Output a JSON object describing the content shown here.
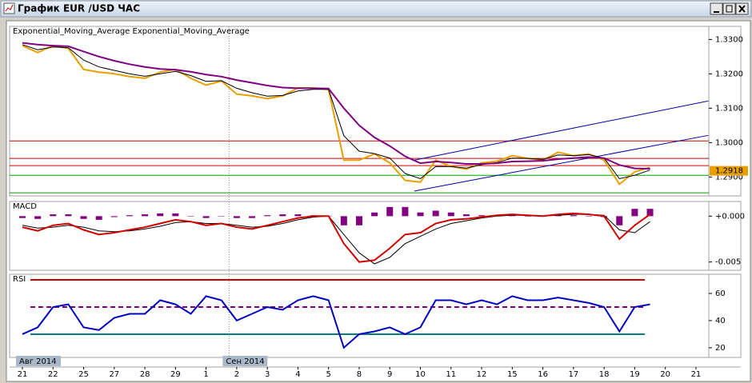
{
  "window": {
    "title": "График EUR /USD  ЧАС"
  },
  "time_axis": {
    "categories": [
      "21",
      "22",
      "25",
      "27",
      "28",
      "29",
      "1",
      "2",
      "3",
      "4",
      "5",
      "8",
      "9",
      "10",
      "11",
      "12",
      "15",
      "16",
      "17",
      "18",
      "19",
      "20",
      "21"
    ],
    "month_labels": [
      {
        "x": 0,
        "label": "Авг 2014"
      },
      {
        "x": 6.75,
        "label": "Сен 2014"
      }
    ]
  },
  "chart_data": [
    {
      "type": "line",
      "title": "Exponential_Moving_Average Exponential_Moving_Average",
      "ylim": [
        1.2845,
        1.3338
      ],
      "yticks": [
        {
          "value": 1.33,
          "label": "1.3300"
        },
        {
          "value": 1.32,
          "label": "1.3200"
        },
        {
          "value": 1.31,
          "label": "1.3100"
        },
        {
          "value": 1.3,
          "label": "1.3000"
        },
        {
          "value": 1.29,
          "label": "1.2900"
        }
      ],
      "x": [
        0,
        0.5,
        1,
        1.5,
        2,
        2.5,
        3,
        3.5,
        4,
        4.5,
        5,
        5.5,
        6,
        6.5,
        7,
        7.5,
        8,
        8.5,
        9,
        9.5,
        10,
        10.5,
        11,
        11.5,
        12,
        12.5,
        13,
        13.5,
        14,
        14.5,
        15,
        15.5,
        16,
        16.5,
        17,
        17.5,
        18,
        18.5,
        19,
        19.5,
        20,
        20.5
      ],
      "series": [
        {
          "color": "#e8a000",
          "values": [
            1.3282,
            1.3262,
            1.3282,
            1.3274,
            1.3213,
            1.3205,
            1.32,
            1.3192,
            1.3187,
            1.3205,
            1.3213,
            1.3187,
            1.3167,
            1.3179,
            1.3141,
            1.3136,
            1.3128,
            1.3136,
            1.3159,
            1.3159,
            1.3154,
            1.2949,
            1.2949,
            1.2967,
            1.2941,
            1.289,
            1.2885,
            1.2949,
            1.2931,
            1.2923,
            1.2941,
            1.2946,
            1.2962,
            1.2954,
            1.2949,
            1.2972,
            1.2962,
            1.2967,
            1.2949,
            1.2879,
            1.2915,
            1.2928
          ]
        },
        {
          "color": "#000000",
          "values": [
            1.3285,
            1.327,
            1.3278,
            1.3276,
            1.324,
            1.322,
            1.321,
            1.32,
            1.3193,
            1.32,
            1.3207,
            1.3195,
            1.3178,
            1.318,
            1.3158,
            1.3145,
            1.3135,
            1.3137,
            1.315,
            1.3155,
            1.3155,
            1.302,
            1.2975,
            1.2968,
            1.2955,
            1.291,
            1.2895,
            1.293,
            1.293,
            1.2926,
            1.2936,
            1.2942,
            1.2955,
            1.2954,
            1.2951,
            1.2964,
            1.2962,
            1.2965,
            1.2955,
            1.2895,
            1.2905,
            1.292
          ]
        },
        {
          "color": "#800080",
          "values": [
            1.329,
            1.3285,
            1.3282,
            1.328,
            1.3265,
            1.325,
            1.3238,
            1.3228,
            1.322,
            1.3214,
            1.3212,
            1.3206,
            1.3198,
            1.3192,
            1.3182,
            1.3174,
            1.3166,
            1.316,
            1.3158,
            1.3158,
            1.3157,
            1.31,
            1.305,
            1.3015,
            1.299,
            1.296,
            1.294,
            1.2945,
            1.2942,
            1.2938,
            1.2938,
            1.294,
            1.2945,
            1.2946,
            1.2947,
            1.2952,
            1.2955,
            1.2958,
            1.2955,
            1.2935,
            1.2925,
            1.2924
          ]
        }
      ],
      "levels": [
        {
          "value": 1.3005,
          "color": "#d00000"
        },
        {
          "value": 1.2954,
          "color": "#d00000"
        },
        {
          "value": 1.2933,
          "color": "#d00000"
        },
        {
          "value": 1.2905,
          "color": "#00a000"
        },
        {
          "value": 1.2854,
          "color": "#00a000"
        }
      ],
      "trendlines": [
        {
          "x": [
            12.8,
            22.4
          ],
          "values": [
            1.2949,
            1.3121
          ],
          "color": "#0000a0"
        },
        {
          "x": [
            12.8,
            22.4
          ],
          "values": [
            1.2859,
            1.3021
          ],
          "color": "#0000a0"
        }
      ],
      "last_price": {
        "value": 1.2918,
        "label": "1.2918",
        "color": "#e8a000"
      }
    },
    {
      "type": "line",
      "title": "MACD",
      "ylim": [
        -0.0059,
        0.0016
      ],
      "yticks": [
        {
          "value": 0,
          "label": "+0.000"
        },
        {
          "value": -0.005,
          "label": "-0.005"
        }
      ],
      "x": [
        0,
        0.5,
        1,
        1.5,
        2,
        2.5,
        3,
        3.5,
        4,
        4.5,
        5,
        5.5,
        6,
        6.5,
        7,
        7.5,
        8,
        8.5,
        9,
        9.5,
        10,
        10.5,
        11,
        11.5,
        12,
        12.5,
        13,
        13.5,
        14,
        14.5,
        15,
        15.5,
        16,
        16.5,
        17,
        17.5,
        18,
        18.5,
        19,
        19.5,
        20,
        20.5
      ],
      "series": [
        {
          "color": "#800080",
          "style": "histogram",
          "values": [
            -0.0002,
            -0.0003,
            0.0002,
            0.0002,
            -0.0003,
            -0.0004,
            -0.0001,
            0.0001,
            0.0002,
            0.0003,
            0.0003,
            0.0,
            -0.0002,
            0.0,
            -0.0002,
            -0.0002,
            0.0001,
            0.0002,
            0.0002,
            0.0001,
            0.0,
            -0.001,
            -0.001,
            0.0004,
            0.001,
            0.001,
            0.0004,
            0.0006,
            0.0004,
            0.0002,
            0.0001,
            0.0001,
            0.0001,
            0.0,
            0.0,
            0.0001,
            0.0001,
            0.0,
            -0.0001,
            -0.001,
            0.0008,
            0.0008
          ]
        },
        {
          "color": "#000000",
          "values": [
            -0.001,
            -0.0013,
            -0.0012,
            -0.001,
            -0.0012,
            -0.0016,
            -0.0017,
            -0.0016,
            -0.0014,
            -0.0011,
            -0.0007,
            -0.0006,
            -0.0008,
            -0.0008,
            -0.001,
            -0.0012,
            -0.0011,
            -0.0008,
            -0.0004,
            -0.0001,
            0.0,
            -0.002,
            -0.004,
            -0.0052,
            -0.0045,
            -0.003,
            -0.0022,
            -0.0014,
            -0.0008,
            -0.0005,
            -0.0002,
            0.0,
            0.0001,
            0.0001,
            0.0,
            0.0001,
            0.0002,
            0.0002,
            0.0001,
            -0.0015,
            -0.0018,
            -0.0006
          ]
        },
        {
          "color": "#d00000",
          "values": [
            -0.0012,
            -0.0016,
            -0.001,
            -0.0008,
            -0.0015,
            -0.002,
            -0.0018,
            -0.0015,
            -0.0012,
            -0.0008,
            -0.0004,
            -0.0006,
            -0.001,
            -0.0008,
            -0.0012,
            -0.0014,
            -0.001,
            -0.0006,
            -0.0002,
            0.0,
            0.0,
            -0.003,
            -0.005,
            -0.0048,
            -0.0035,
            -0.002,
            -0.0018,
            -0.0008,
            -0.0004,
            -0.0003,
            -0.0001,
            0.0001,
            0.0002,
            0.0001,
            0.0,
            0.0002,
            0.0003,
            0.0002,
            0.0,
            -0.0025,
            -0.001,
            0.0002
          ]
        }
      ]
    },
    {
      "type": "line",
      "title": "RSI",
      "ylim": [
        12.9,
        74.1
      ],
      "yticks": [
        60,
        40,
        20
      ],
      "x": [
        0,
        0.5,
        1,
        1.5,
        2,
        2.5,
        3,
        3.5,
        4,
        4.5,
        5,
        5.5,
        6,
        6.5,
        7,
        7.5,
        8,
        8.5,
        9,
        9.5,
        10,
        10.5,
        11,
        11.5,
        12,
        12.5,
        13,
        13.5,
        14,
        14.5,
        15,
        15.5,
        16,
        16.5,
        17,
        17.5,
        18,
        18.5,
        19,
        19.5,
        20,
        20.5
      ],
      "series": [
        {
          "color": "#0000c0",
          "values": [
            30,
            35,
            50,
            52,
            35,
            33,
            42,
            45,
            45,
            55,
            52,
            45,
            58,
            55,
            40,
            45,
            50,
            48,
            55,
            58,
            55,
            20,
            30,
            32,
            35,
            30,
            35,
            55,
            55,
            52,
            55,
            52,
            58,
            55,
            55,
            57,
            55,
            53,
            50,
            32,
            50,
            52
          ]
        }
      ],
      "levels": [
        {
          "value": 70,
          "color": "#d00000"
        },
        {
          "value": 50,
          "color": "#800080",
          "dash": true
        },
        {
          "value": 30,
          "color": "#008080"
        }
      ]
    }
  ]
}
